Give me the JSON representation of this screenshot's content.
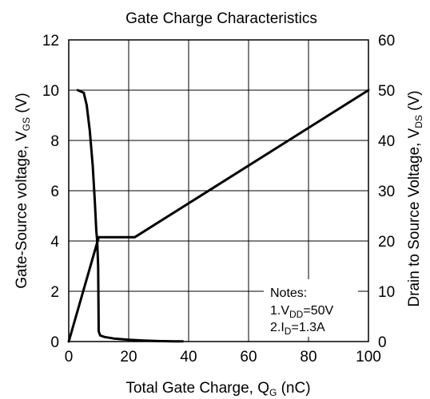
{
  "chart_data": {
    "type": "line",
    "title": "Gate Charge Characteristics",
    "xlabel": {
      "main": "Total Gate Charge, Q",
      "sub": "G",
      "unit": " (nC)"
    },
    "ylabel_left": {
      "main": "Gate-Source voltage, V",
      "sub": "GS",
      "unit": " (V)"
    },
    "ylabel_right": {
      "main": "Drain to Source Voltage, V",
      "sub": "DS",
      "unit": " (V)"
    },
    "xlim": [
      0,
      100
    ],
    "ylim_left": [
      0,
      12
    ],
    "ylim_right": [
      0,
      60
    ],
    "x_ticks": [
      "0",
      "20",
      "40",
      "60",
      "80",
      "100"
    ],
    "y_ticks_left": [
      "0",
      "2",
      "4",
      "6",
      "8",
      "10",
      "12"
    ],
    "y_ticks_right": [
      "0",
      "10",
      "20",
      "30",
      "40",
      "50",
      "60"
    ],
    "grid": true,
    "series": [
      {
        "axis": "left",
        "points": [
          [
            0,
            0
          ],
          [
            10,
            4.15
          ],
          [
            22,
            4.15
          ],
          [
            100,
            10
          ]
        ]
      },
      {
        "axis": "right",
        "points": [
          [
            3,
            50
          ],
          [
            5,
            49.5
          ],
          [
            6,
            47
          ],
          [
            7,
            42
          ],
          [
            8,
            35
          ],
          [
            8.7,
            28
          ],
          [
            9.2,
            22
          ],
          [
            9.5,
            20
          ],
          [
            9.8,
            15
          ],
          [
            10,
            2
          ],
          [
            10.5,
            1.2
          ],
          [
            12,
            0.9
          ],
          [
            15,
            0.6
          ],
          [
            20,
            0.35
          ],
          [
            25,
            0.2
          ],
          [
            30,
            0.1
          ],
          [
            35,
            0.05
          ],
          [
            38,
            0.03
          ]
        ]
      }
    ],
    "notes": {
      "title": "Notes:",
      "lines": [
        {
          "pre": "1.V",
          "sub": "DD",
          "post": "=50V"
        },
        {
          "pre": "2.I",
          "sub": "D",
          "post": "=1.3A"
        }
      ]
    }
  }
}
